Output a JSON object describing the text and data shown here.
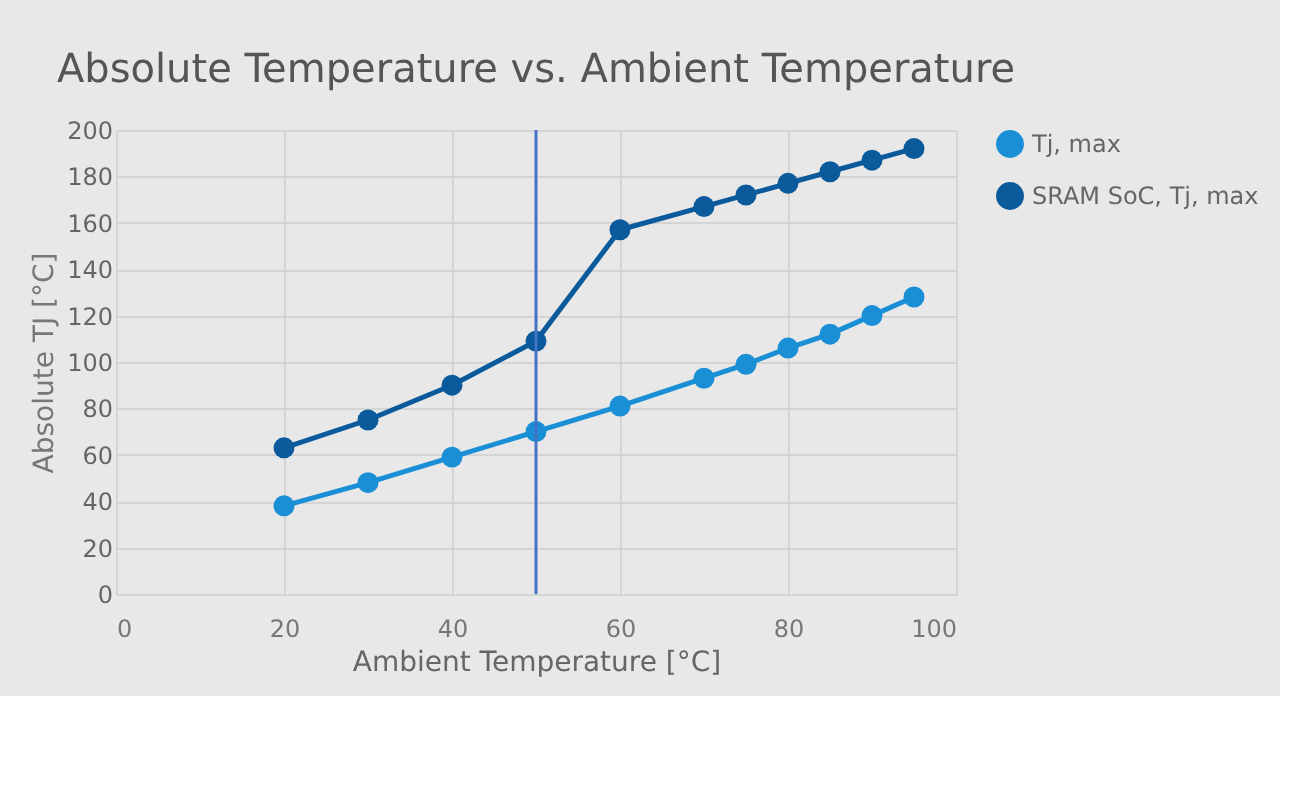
{
  "chart_data": {
    "type": "line",
    "title": "Absolute Temperature vs. Ambient Temperature",
    "xlabel": "Ambient Temperature [°C]",
    "ylabel": "Absolute TJ [°C]",
    "x": [
      20,
      30,
      40,
      50,
      60,
      70,
      75,
      80,
      85,
      90,
      95
    ],
    "series": [
      {
        "name": "Tj, max",
        "color": "#1a8fd6",
        "values": [
          38,
          48,
          59,
          70,
          81,
          93,
          99,
          106,
          112,
          120,
          128
        ]
      },
      {
        "name": "SRAM SoC, Tj, max",
        "color": "#0b5a9c",
        "values": [
          63,
          75,
          90,
          109,
          157,
          167,
          172,
          177,
          182,
          187,
          192
        ]
      }
    ],
    "xlim": [
      0,
      100
    ],
    "xticks": [
      0,
      20,
      40,
      60,
      80,
      100
    ],
    "ylim": [
      0,
      200
    ],
    "yticks": [
      0,
      20,
      40,
      60,
      80,
      100,
      120,
      140,
      160,
      180,
      200
    ],
    "ref_lines": [
      {
        "axis": "x",
        "value": 50,
        "color": "#4472c4"
      }
    ],
    "grid": true,
    "legend": "right",
    "marker": "circle",
    "line_style": "solid"
  }
}
